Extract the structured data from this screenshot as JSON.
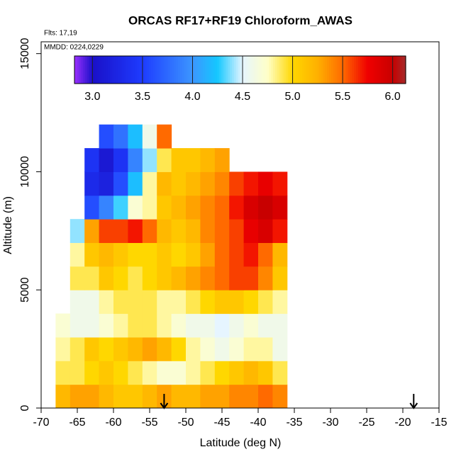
{
  "chart_data": {
    "type": "heatmap",
    "title": "ORCAS RF17+RF19 Chloroform_AWAS",
    "annotations": [
      "Flts: 17,19",
      "MMDD: 0224,0229"
    ],
    "xlabel": "Latitude (deg N)",
    "ylabel": "Altitude (m)",
    "xlim": [
      -70,
      -15
    ],
    "xticks": [
      -70,
      -65,
      -60,
      -55,
      -50,
      -45,
      -40,
      -35,
      -30,
      -25,
      -20,
      -15
    ],
    "ylim": [
      0,
      15500
    ],
    "yticks": [
      0,
      5000,
      10000,
      15000
    ],
    "x": [
      -67,
      -65,
      -63,
      -61,
      -59,
      -57,
      -55,
      -53,
      -51,
      -49,
      -47,
      -45,
      -43,
      -41,
      -39,
      -37
    ],
    "y": [
      500,
      1500,
      2500,
      3500,
      4500,
      5500,
      6500,
      7500,
      8500,
      9500,
      10500,
      11500
    ],
    "z": [
      [
        5.2,
        5.3,
        5.3,
        5.2,
        5.1,
        5.1,
        5.2,
        5.3,
        5.2,
        5.2,
        5.3,
        5.3,
        5.4,
        5.4,
        5.5,
        5.4
      ],
      [
        4.9,
        4.9,
        5.0,
        5.1,
        5.0,
        4.9,
        4.8,
        4.7,
        4.7,
        4.8,
        4.9,
        5.0,
        5.1,
        5.2,
        5.1,
        4.9
      ],
      [
        4.8,
        4.9,
        5.1,
        5.0,
        5.1,
        5.2,
        5.3,
        5.2,
        5.0,
        4.8,
        4.7,
        4.6,
        4.7,
        4.8,
        4.8,
        4.6
      ],
      [
        4.7,
        4.6,
        4.6,
        4.7,
        4.8,
        4.9,
        4.9,
        4.8,
        4.7,
        4.6,
        4.6,
        4.5,
        4.6,
        4.7,
        4.6,
        4.6
      ],
      [
        null,
        4.6,
        4.6,
        4.8,
        4.9,
        4.9,
        4.9,
        4.8,
        4.8,
        4.9,
        5.0,
        5.1,
        5.1,
        5.0,
        4.9,
        4.8
      ],
      [
        null,
        4.9,
        4.9,
        5.1,
        5.0,
        4.9,
        5.0,
        5.1,
        5.2,
        5.3,
        5.4,
        5.5,
        5.6,
        5.6,
        5.4,
        5.1
      ],
      [
        null,
        4.8,
        5.1,
        5.2,
        5.1,
        5.0,
        5.0,
        5.1,
        5.0,
        5.1,
        5.3,
        5.5,
        5.6,
        5.7,
        5.5,
        5.2
      ],
      [
        null,
        4.4,
        5.3,
        5.6,
        5.6,
        5.7,
        5.5,
        5.2,
        5.1,
        5.2,
        5.4,
        5.5,
        5.6,
        5.8,
        5.9,
        5.7
      ],
      [
        null,
        null,
        3.6,
        3.9,
        4.3,
        4.7,
        4.8,
        5.1,
        5.2,
        5.3,
        5.4,
        5.5,
        5.7,
        5.9,
        6.0,
        5.9
      ],
      [
        null,
        null,
        3.3,
        3.2,
        3.6,
        4.2,
        4.8,
        5.2,
        5.1,
        5.2,
        5.3,
        5.4,
        5.6,
        5.7,
        5.8,
        5.7
      ],
      [
        null,
        null,
        3.4,
        3.1,
        3.4,
        3.9,
        4.4,
        4.9,
        5.1,
        5.1,
        5.2,
        5.3,
        null,
        null,
        null,
        null
      ],
      [
        null,
        null,
        null,
        3.6,
        3.8,
        4.2,
        4.6,
        5.5,
        null,
        null,
        null,
        null,
        null,
        null,
        null,
        null
      ]
    ],
    "markers_x": [
      -53,
      -18.5
    ],
    "colorbar": {
      "range": [
        2.82,
        6.13
      ],
      "ticks": [
        {
          "value": 3,
          "label": "3.0"
        },
        3.5,
        {
          "value": 4,
          "label": "4.0"
        },
        4.5,
        {
          "value": 5,
          "label": "5.0"
        },
        5.5,
        {
          "value": 6,
          "label": "6.0"
        }
      ],
      "stops": [
        [
          2.82,
          "#9b30ff"
        ],
        [
          3.0,
          "#1a10c8"
        ],
        [
          3.5,
          "#1e3cff"
        ],
        [
          4.0,
          "#3c96ff"
        ],
        [
          4.25,
          "#14c8ff"
        ],
        [
          4.5,
          "#e6f5ff"
        ],
        [
          4.75,
          "#ffffc8"
        ],
        [
          5.0,
          "#ffd700"
        ],
        [
          5.25,
          "#ffb000"
        ],
        [
          5.5,
          "#ff6a00"
        ],
        [
          5.75,
          "#f00000"
        ],
        [
          6.0,
          "#c80000"
        ],
        [
          6.13,
          "#a52a2a"
        ]
      ]
    }
  }
}
